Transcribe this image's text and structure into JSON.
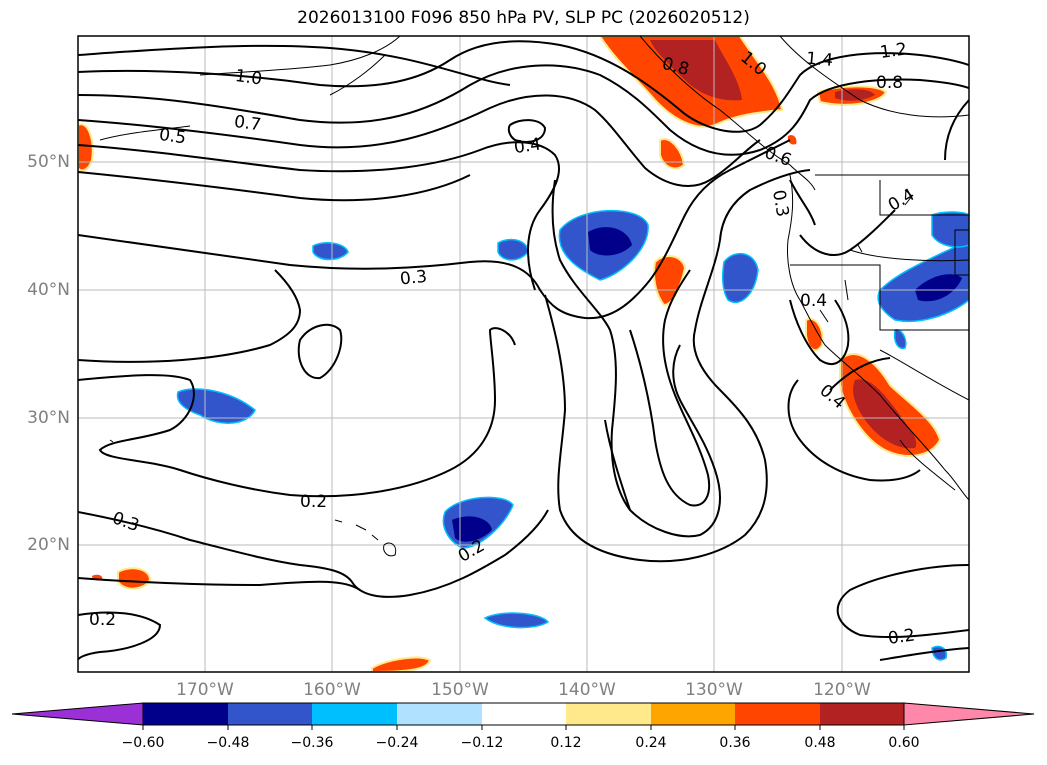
{
  "title": "2026013100 F096 850 hPa PV, SLP PC (2026020512)",
  "map": {
    "variable": "850 hPa PV",
    "contours": "SLP PC",
    "lat_range": [
      10,
      60
    ],
    "lon_range": [
      -180,
      -110
    ],
    "lat_labels": [
      "50°N",
      "40°N",
      "30°N",
      "20°N"
    ],
    "lon_labels": [
      "170°W",
      "160°W",
      "150°W",
      "140°W",
      "130°W",
      "120°W"
    ],
    "contour_labels": [
      "1.0",
      "0.7",
      "0.5",
      "0.4",
      "0.3",
      "0.2",
      "0.3",
      "0.2",
      "0.2",
      "0.2",
      "1.4",
      "1.2",
      "0.8",
      "1.0",
      "0.8",
      "0.6",
      "0.3",
      "0.4",
      "0.4",
      "0.4"
    ]
  },
  "colorbar": {
    "ticks": [
      "−0.60",
      "−0.48",
      "−0.36",
      "−0.24",
      "−0.12",
      "0.12",
      "0.24",
      "0.36",
      "0.48",
      "0.60"
    ],
    "colors": [
      "#9b30d6",
      "#00008b",
      "#3355cc",
      "#00bfff",
      "#b0e2ff",
      "#ffffff",
      "#ffe98a",
      "#ffa500",
      "#ff4500",
      "#b22222",
      "#ff88aa"
    ]
  }
}
